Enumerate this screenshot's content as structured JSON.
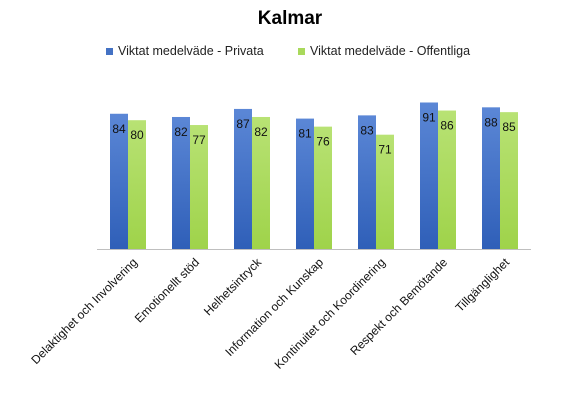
{
  "chart_data": {
    "type": "bar",
    "title": "Kalmar",
    "categories": [
      "Delaktighet och Involvering",
      "Emotionellt stöd",
      "Helhetsintryck",
      "Information och Kunskap",
      "Kontinuitet och Koordinering",
      "Respekt och Bemötande",
      "Tillgänglighet"
    ],
    "series": [
      {
        "name": "Viktat medelväde - Privata",
        "values": [
          84,
          82,
          87,
          81,
          83,
          91,
          88
        ],
        "color": "#4472c4"
      },
      {
        "name": "Viktat medelväde - Offentliga",
        "values": [
          80,
          77,
          82,
          76,
          71,
          86,
          85
        ],
        "color": "#a9d95b"
      }
    ],
    "ylim": [
      0,
      100
    ],
    "grid": false,
    "legend_position": "top",
    "xlabel": "",
    "ylabel": ""
  }
}
